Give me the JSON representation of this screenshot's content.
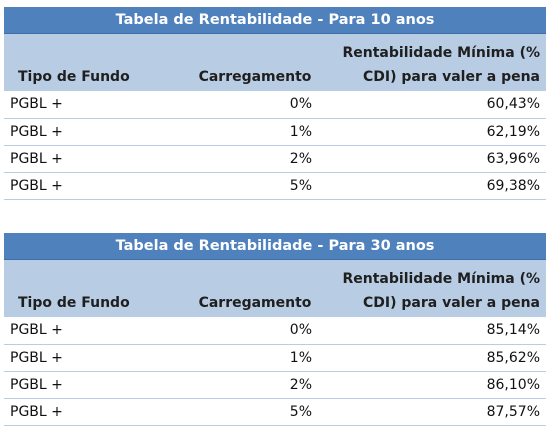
{
  "tables": [
    {
      "title": "Tabela de Rentabilidade - Para 10 anos",
      "headers": {
        "tipo": "Tipo de Fundo",
        "carregamento": "Carregamento",
        "rent_line1": "Rentabilidade Mínima (%",
        "rent_line2": "CDI) para valer a pena"
      },
      "rows": [
        {
          "tipo": "PGBL +",
          "carregamento": "0%",
          "rentabilidade": "60,43%"
        },
        {
          "tipo": "PGBL +",
          "carregamento": "1%",
          "rentabilidade": "62,19%"
        },
        {
          "tipo": "PGBL +",
          "carregamento": "2%",
          "rentabilidade": "63,96%"
        },
        {
          "tipo": "PGBL +",
          "carregamento": "5%",
          "rentabilidade": "69,38%"
        }
      ]
    },
    {
      "title": "Tabela de Rentabilidade - Para 30 anos",
      "headers": {
        "tipo": "Tipo de Fundo",
        "carregamento": "Carregamento",
        "rent_line1": "Rentabilidade Mínima (%",
        "rent_line2": "CDI) para valer a pena"
      },
      "rows": [
        {
          "tipo": "PGBL +",
          "carregamento": "0%",
          "rentabilidade": "85,14%"
        },
        {
          "tipo": "PGBL +",
          "carregamento": "1%",
          "rentabilidade": "85,62%"
        },
        {
          "tipo": "PGBL +",
          "carregamento": "2%",
          "rentabilidade": "86,10%"
        },
        {
          "tipo": "PGBL +",
          "carregamento": "5%",
          "rentabilidade": "87,57%"
        }
      ]
    }
  ],
  "colors": {
    "title_bg": "#4f81bd",
    "header_bg": "#b8cce4",
    "row_border": "#b8cce4"
  }
}
